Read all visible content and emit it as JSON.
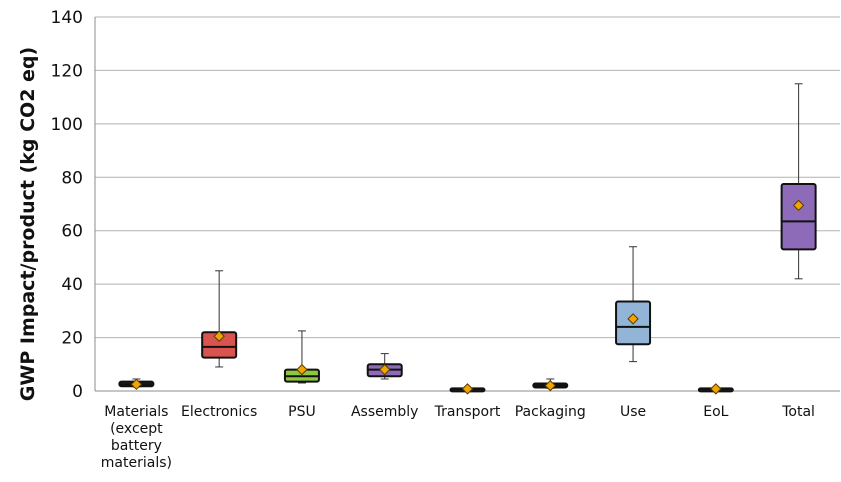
{
  "chart_data": {
    "type": "box",
    "title": "",
    "xlabel": "",
    "ylabel": "GWP Impact/product (kg CO2 eq)",
    "ylim": [
      0,
      140
    ],
    "yticks": [
      0,
      20,
      40,
      60,
      80,
      100,
      120,
      140
    ],
    "grid": true,
    "legend": "none",
    "categories": [
      {
        "label": [
          "Materials",
          "(except",
          "battery",
          "materials)"
        ],
        "min": 1.5,
        "q1": 1.8,
        "median": 2.5,
        "q3": 3.5,
        "max": 4.5,
        "mean": 2.5,
        "color": "#222222"
      },
      {
        "label": [
          "Electronics"
        ],
        "min": 9,
        "q1": 12.5,
        "median": 16.5,
        "q3": 22,
        "max": 45,
        "mean": 20.5,
        "color": "#d9534f"
      },
      {
        "label": [
          "PSU"
        ],
        "min": 3,
        "q1": 3.5,
        "median": 5.5,
        "q3": 8,
        "max": 22.5,
        "mean": 8,
        "color": "#8dc63f"
      },
      {
        "label": [
          "Assembly"
        ],
        "min": 4.5,
        "q1": 5.5,
        "median": 8,
        "q3": 10,
        "max": 14,
        "mean": 8,
        "color": "#8e6bb8"
      },
      {
        "label": [
          "Transport"
        ],
        "min": 0.3,
        "q1": 0.5,
        "median": 0.8,
        "q3": 1.0,
        "max": 1.2,
        "mean": 0.8,
        "color": "#222222"
      },
      {
        "label": [
          "Packaging"
        ],
        "min": 1.0,
        "q1": 1.3,
        "median": 2.0,
        "q3": 2.8,
        "max": 4.5,
        "mean": 2.0,
        "color": "#222222"
      },
      {
        "label": [
          "Use"
        ],
        "min": 11,
        "q1": 17.5,
        "median": 24,
        "q3": 33.5,
        "max": 54,
        "mean": 27,
        "color": "#92b4d6"
      },
      {
        "label": [
          "EoL"
        ],
        "min": 0.3,
        "q1": 0.5,
        "median": 0.8,
        "q3": 1.0,
        "max": 1.2,
        "mean": 0.8,
        "color": "#222222"
      },
      {
        "label": [
          "Total"
        ],
        "min": 42,
        "q1": 53,
        "median": 63.5,
        "q3": 77.5,
        "max": 115,
        "mean": 69.5,
        "color": "#8e6bb8"
      }
    ],
    "mean_marker_color": "#f0a500"
  }
}
